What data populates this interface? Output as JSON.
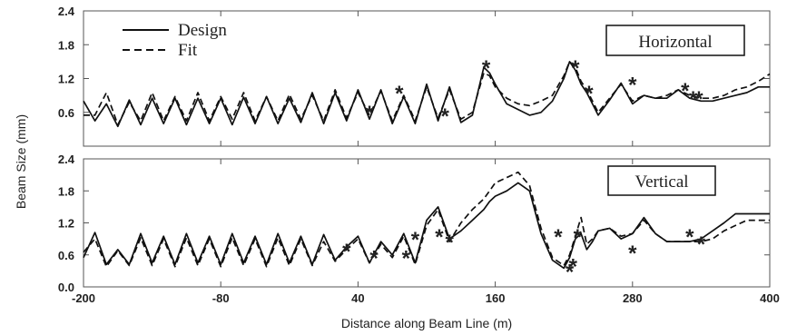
{
  "figure": {
    "ylabel": "Beam Size (mm)",
    "xlabel": "Distance along Beam Line (m)"
  },
  "chart_data": [
    {
      "type": "line",
      "title": "Horizontal",
      "xlabel": "Distance along Beam Line (m)",
      "ylabel": "Beam Size (mm)",
      "xlim": [
        -200,
        400
      ],
      "ylim": [
        0,
        2.4
      ],
      "x_ticks": [
        "-200",
        "-80",
        "40",
        "160",
        "280",
        "400"
      ],
      "y_ticks": [
        "2.4",
        "1.8",
        "1.2",
        "0.6"
      ],
      "legend": {
        "position": "top-left",
        "entries": [
          {
            "label": "Design",
            "style": "solid"
          },
          {
            "label": "Fit",
            "style": "dashed"
          }
        ]
      },
      "series": [
        {
          "name": "Design",
          "style": "solid",
          "color": "#111111",
          "x": [
            -200,
            -190,
            -180,
            -170,
            -160,
            -150,
            -140,
            -130,
            -120,
            -110,
            -100,
            -90,
            -80,
            -70,
            -60,
            -50,
            -40,
            -30,
            -20,
            -10,
            0,
            10,
            20,
            30,
            40,
            50,
            60,
            70,
            80,
            90,
            100,
            110,
            120,
            130,
            140,
            150,
            155,
            160,
            170,
            180,
            190,
            200,
            210,
            220,
            225,
            230,
            235,
            240,
            250,
            260,
            270,
            280,
            290,
            300,
            310,
            320,
            330,
            340,
            350,
            360,
            370,
            380,
            390,
            400
          ],
          "y": [
            0.8,
            0.45,
            0.75,
            0.35,
            0.82,
            0.38,
            0.85,
            0.4,
            0.85,
            0.38,
            0.85,
            0.4,
            0.85,
            0.38,
            0.87,
            0.4,
            0.88,
            0.4,
            0.85,
            0.42,
            0.95,
            0.4,
            0.95,
            0.45,
            1.0,
            0.48,
            1.0,
            0.4,
            0.88,
            0.4,
            1.1,
            0.45,
            1.05,
            0.42,
            0.55,
            1.4,
            1.3,
            1.1,
            0.75,
            0.65,
            0.55,
            0.6,
            0.8,
            1.2,
            1.5,
            1.35,
            1.1,
            0.95,
            0.55,
            0.82,
            1.12,
            0.75,
            0.9,
            0.85,
            0.85,
            1.0,
            0.85,
            0.8,
            0.8,
            0.85,
            0.9,
            0.95,
            1.05,
            1.05
          ]
        },
        {
          "name": "Fit",
          "style": "dashed",
          "color": "#111111",
          "x": [
            -200,
            -190,
            -180,
            -170,
            -160,
            -150,
            -140,
            -130,
            -120,
            -110,
            -100,
            -90,
            -80,
            -70,
            -60,
            -50,
            -40,
            -30,
            -20,
            -10,
            0,
            10,
            20,
            30,
            40,
            50,
            60,
            70,
            80,
            90,
            100,
            110,
            120,
            130,
            140,
            150,
            155,
            160,
            170,
            180,
            190,
            200,
            210,
            220,
            225,
            230,
            235,
            240,
            250,
            260,
            270,
            280,
            290,
            300,
            310,
            320,
            330,
            340,
            350,
            360,
            370,
            380,
            390,
            400
          ],
          "y": [
            0.55,
            0.55,
            0.95,
            0.38,
            0.78,
            0.45,
            0.95,
            0.45,
            0.88,
            0.45,
            0.95,
            0.45,
            0.88,
            0.48,
            0.95,
            0.45,
            0.88,
            0.45,
            0.92,
            0.48,
            0.9,
            0.45,
            1.0,
            0.5,
            0.95,
            0.55,
            0.98,
            0.45,
            0.9,
            0.45,
            1.05,
            0.5,
            1.0,
            0.48,
            0.6,
            1.3,
            1.25,
            1.05,
            0.85,
            0.75,
            0.72,
            0.8,
            0.9,
            1.25,
            1.5,
            1.4,
            1.15,
            1.0,
            0.6,
            0.85,
            1.1,
            0.8,
            0.9,
            0.85,
            0.9,
            1.0,
            0.9,
            0.85,
            0.85,
            0.9,
            1.0,
            1.05,
            1.15,
            1.28
          ]
        }
      ],
      "markers": {
        "symbol": "*",
        "x": [
          50,
          76,
          116,
          152,
          230,
          242,
          280,
          326,
          333,
          338
        ],
        "y": [
          0.6,
          0.95,
          0.55,
          1.4,
          1.4,
          0.95,
          1.1,
          1.0,
          0.85,
          0.85
        ]
      }
    },
    {
      "type": "line",
      "title": "Vertical",
      "xlabel": "Distance along Beam Line (m)",
      "ylabel": "Beam Size (mm)",
      "xlim": [
        -200,
        400
      ],
      "ylim": [
        0,
        2.4
      ],
      "x_ticks": [
        "-200",
        "-80",
        "40",
        "160",
        "280",
        "400"
      ],
      "y_ticks": [
        "2.4",
        "1.8",
        "1.2",
        "0.6",
        "0.0"
      ],
      "series": [
        {
          "name": "Design",
          "style": "solid",
          "color": "#111111",
          "x": [
            -200,
            -190,
            -180,
            -170,
            -160,
            -150,
            -140,
            -130,
            -120,
            -110,
            -100,
            -90,
            -80,
            -70,
            -60,
            -50,
            -40,
            -30,
            -20,
            -10,
            0,
            10,
            20,
            30,
            40,
            50,
            60,
            70,
            80,
            90,
            100,
            110,
            120,
            130,
            140,
            150,
            155,
            160,
            170,
            180,
            190,
            200,
            210,
            220,
            225,
            230,
            235,
            240,
            245,
            250,
            260,
            270,
            280,
            290,
            300,
            310,
            320,
            330,
            340,
            350,
            360,
            370,
            380,
            390,
            400
          ],
          "y": [
            0.55,
            1.02,
            0.42,
            0.7,
            0.42,
            1.0,
            0.45,
            0.95,
            0.42,
            1.0,
            0.45,
            0.95,
            0.42,
            1.0,
            0.45,
            0.95,
            0.42,
            1.0,
            0.45,
            0.95,
            0.42,
            0.98,
            0.5,
            0.75,
            0.95,
            0.45,
            0.85,
            0.6,
            1.0,
            0.45,
            1.25,
            1.5,
            0.9,
            1.05,
            1.25,
            1.45,
            1.6,
            1.7,
            1.8,
            1.95,
            1.8,
            1.0,
            0.5,
            0.35,
            0.55,
            0.9,
            1.0,
            0.7,
            0.85,
            1.05,
            1.1,
            0.9,
            1.0,
            1.3,
            1.0,
            0.85,
            0.85,
            0.85,
            0.9,
            1.05,
            1.2,
            1.37,
            1.37,
            1.37,
            1.37
          ]
        },
        {
          "name": "Fit",
          "style": "dashed",
          "color": "#111111",
          "x": [
            -200,
            -190,
            -180,
            -170,
            -160,
            -150,
            -140,
            -130,
            -120,
            -110,
            -100,
            -90,
            -80,
            -70,
            -60,
            -50,
            -40,
            -30,
            -20,
            -10,
            0,
            10,
            20,
            30,
            40,
            50,
            60,
            70,
            80,
            90,
            100,
            110,
            120,
            130,
            140,
            150,
            155,
            160,
            170,
            180,
            190,
            200,
            210,
            220,
            225,
            230,
            235,
            240,
            245,
            250,
            260,
            270,
            280,
            290,
            300,
            310,
            320,
            330,
            340,
            350,
            360,
            370,
            380,
            390,
            400
          ],
          "y": [
            0.65,
            0.9,
            0.38,
            0.68,
            0.4,
            0.92,
            0.4,
            0.9,
            0.38,
            0.92,
            0.4,
            0.9,
            0.38,
            0.92,
            0.4,
            0.9,
            0.38,
            0.92,
            0.4,
            0.9,
            0.4,
            0.85,
            0.48,
            0.7,
            0.9,
            0.45,
            0.8,
            0.55,
            0.95,
            0.42,
            1.15,
            1.45,
            0.85,
            1.2,
            1.45,
            1.65,
            1.8,
            1.95,
            2.05,
            2.15,
            1.9,
            1.1,
            0.55,
            0.4,
            0.6,
            0.95,
            1.3,
            0.8,
            0.9,
            1.05,
            1.1,
            0.95,
            1.0,
            1.25,
            1.0,
            0.85,
            0.85,
            0.85,
            0.85,
            0.9,
            1.05,
            1.15,
            1.25,
            1.25,
            1.25
          ]
        }
      ],
      "markers": {
        "symbol": "*",
        "x": [
          30,
          54,
          82,
          90,
          111,
          120,
          215,
          225,
          228,
          232,
          280,
          330,
          340
        ],
        "y": [
          0.68,
          0.55,
          0.55,
          0.9,
          0.95,
          0.85,
          0.95,
          0.3,
          0.4,
          0.95,
          0.65,
          0.95,
          0.82
        ]
      }
    }
  ]
}
